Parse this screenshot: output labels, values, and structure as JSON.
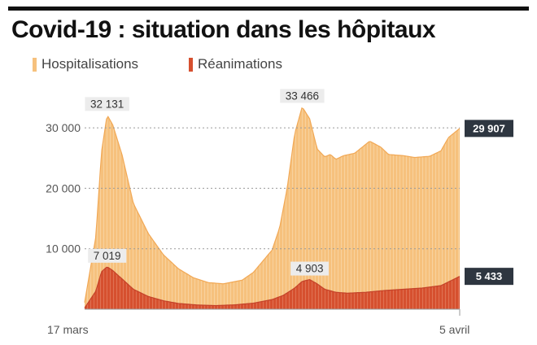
{
  "title": "Covid-19 : situation dans les hôpitaux",
  "colors": {
    "hospitalisations": "#f6c17d",
    "hospitalisations_edge": "#f1a855",
    "reanimations": "#d6502f",
    "end_label_bg": "#2e3640",
    "callout_bg": "#ececec",
    "grid": "#9a9a9a"
  },
  "chart_data": {
    "type": "area",
    "title": "Covid-19 : situation dans les hôpitaux",
    "xlabel": "",
    "ylabel": "",
    "x_start_label": "17 mars",
    "x_end_label": "5 avril",
    "y_ticks": [
      {
        "value": 10000,
        "label": "10 000"
      },
      {
        "value": 20000,
        "label": "20 000"
      },
      {
        "value": 30000,
        "label": "30 000"
      }
    ],
    "ylim": [
      0,
      35000
    ],
    "grid": "horizontal-dashed",
    "legend": "top-left",
    "series": [
      {
        "name": "Hospitalisations",
        "t": [
          0,
          0.03,
          0.045,
          0.06,
          0.075,
          0.1,
          0.13,
          0.17,
          0.21,
          0.25,
          0.29,
          0.33,
          0.37,
          0.42,
          0.45,
          0.5,
          0.52,
          0.54,
          0.56,
          0.58,
          0.6,
          0.62,
          0.64,
          0.655,
          0.67,
          0.69,
          0.72,
          0.76,
          0.79,
          0.81,
          0.85,
          0.88,
          0.92,
          0.95,
          0.97,
          1.0
        ],
        "values": [
          1100,
          12000,
          26000,
          32131,
          30500,
          25500,
          17500,
          12500,
          9000,
          6700,
          5200,
          4400,
          4200,
          4800,
          6100,
          9800,
          13500,
          20000,
          29000,
          33466,
          31500,
          26500,
          25200,
          25600,
          24800,
          25400,
          25800,
          27800,
          26800,
          25600,
          25400,
          25100,
          25300,
          26200,
          28400,
          29907
        ]
      },
      {
        "name": "Réanimations",
        "t": [
          0,
          0.03,
          0.045,
          0.06,
          0.075,
          0.1,
          0.13,
          0.17,
          0.21,
          0.25,
          0.3,
          0.35,
          0.4,
          0.45,
          0.5,
          0.53,
          0.56,
          0.58,
          0.6,
          0.62,
          0.64,
          0.67,
          0.7,
          0.75,
          0.8,
          0.85,
          0.9,
          0.95,
          1.0
        ],
        "values": [
          200,
          3000,
          6200,
          7019,
          6400,
          5000,
          3300,
          2100,
          1400,
          950,
          700,
          600,
          720,
          1000,
          1600,
          2300,
          3500,
          4600,
          4903,
          4200,
          3300,
          2800,
          2650,
          2800,
          3100,
          3300,
          3500,
          3900,
          5433
        ]
      }
    ],
    "annotations": [
      {
        "series": "Hospitalisations",
        "t": 0.06,
        "value": 32131,
        "label": "32 131"
      },
      {
        "series": "Hospitalisations",
        "t": 0.58,
        "value": 33466,
        "label": "33 466"
      },
      {
        "series": "Réanimations",
        "t": 0.06,
        "value": 7019,
        "label": "7 019"
      },
      {
        "series": "Réanimations",
        "t": 0.6,
        "value": 4903,
        "label": "4 903"
      }
    ],
    "end_labels": [
      {
        "series": "Hospitalisations",
        "value": 29907,
        "label": "29 907"
      },
      {
        "series": "Réanimations",
        "value": 5433,
        "label": "5 433"
      }
    ]
  }
}
